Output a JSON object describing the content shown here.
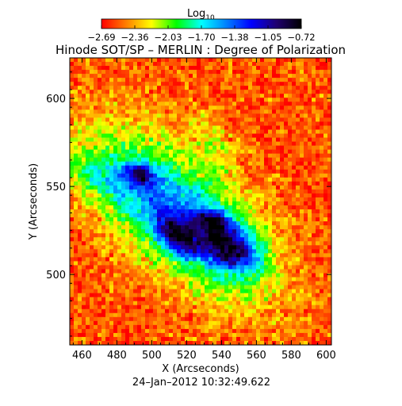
{
  "chart_data": {
    "type": "heatmap",
    "title": "Hinode SOT/SP – MERLIN : Degree of Polarization",
    "colorbar": {
      "label_main": "Log",
      "label_sub": "10",
      "ticks": [
        "−2.69",
        "−2.36",
        "−2.03",
        "−1.70",
        "−1.38",
        "−1.05",
        "−0.72"
      ],
      "range": [
        -2.69,
        -0.72
      ],
      "colormap": [
        "#ff0000",
        "#ff8000",
        "#ffff00",
        "#00ff00",
        "#00ffff",
        "#0080ff",
        "#0000ff",
        "#200070",
        "#000000"
      ]
    },
    "xlabel": "X (Arcseconds)",
    "ylabel": "Y (Arcseconds)",
    "xlim": [
      453,
      603
    ],
    "ylim": [
      460,
      623
    ],
    "xticks": [
      "460",
      "480",
      "500",
      "520",
      "540",
      "560",
      "580",
      "600"
    ],
    "xtick_values": [
      460,
      480,
      500,
      520,
      540,
      560,
      580,
      600
    ],
    "yticks": [
      "500",
      "550",
      "600"
    ],
    "ytick_values": [
      500,
      550,
      600
    ],
    "footer": "24–Jan–2012 10:32:49.622"
  }
}
